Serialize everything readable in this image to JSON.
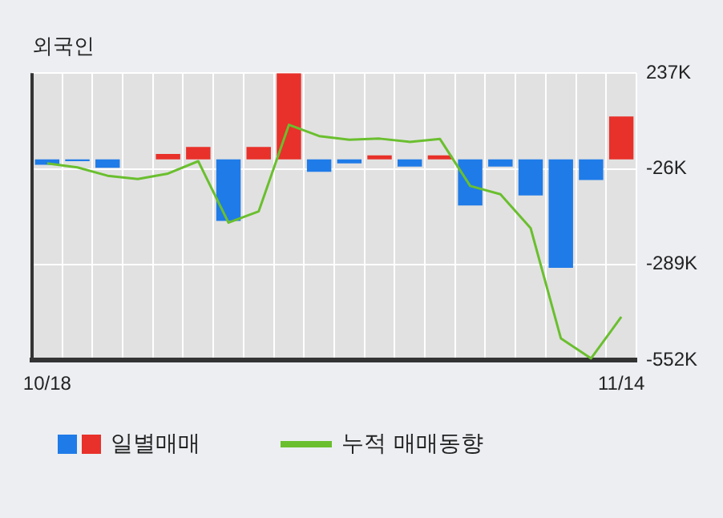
{
  "chart_data": {
    "type": "bar",
    "title": "외국인",
    "categories": [
      "10/18",
      null,
      null,
      null,
      null,
      null,
      null,
      null,
      null,
      null,
      null,
      null,
      null,
      null,
      null,
      null,
      null,
      null,
      null,
      "11/14"
    ],
    "series": [
      {
        "name": "일별매매",
        "values": [
          -15,
          -5,
          -23,
          0,
          15,
          34,
          -169,
          34,
          237,
          -34,
          -11,
          11,
          -20,
          11,
          -127,
          -20,
          -99,
          -298,
          -57,
          118
        ],
        "colors": [
          "#1f7be8",
          "#1f7be8",
          "#1f7be8",
          "#1f7be8",
          "#e8312a",
          "#e8312a",
          "#1f7be8",
          "#e8312a",
          "#e8312a",
          "#1f7be8",
          "#1f7be8",
          "#e8312a",
          "#1f7be8",
          "#e8312a",
          "#1f7be8",
          "#1f7be8",
          "#1f7be8",
          "#1f7be8",
          "#1f7be8",
          "#e8312a"
        ]
      },
      {
        "type": "line",
        "name": "누적 매매동향",
        "color": "#6abf2e",
        "values": [
          -11,
          -22,
          -45,
          -54,
          -39,
          -5,
          -174,
          -143,
          95,
          64,
          54,
          57,
          48,
          56,
          -73,
          -96,
          -189,
          -492,
          -547,
          -433
        ]
      }
    ],
    "ylim": [
      -552,
      237
    ],
    "yticks": [
      {
        "value": 237,
        "label": "237K"
      },
      {
        "value": -26,
        "label": "-26K"
      },
      {
        "value": -289,
        "label": "-289K"
      },
      {
        "value": -552,
        "label": "-552K"
      }
    ],
    "grid": true,
    "legend": "bottom",
    "marker": "none"
  }
}
